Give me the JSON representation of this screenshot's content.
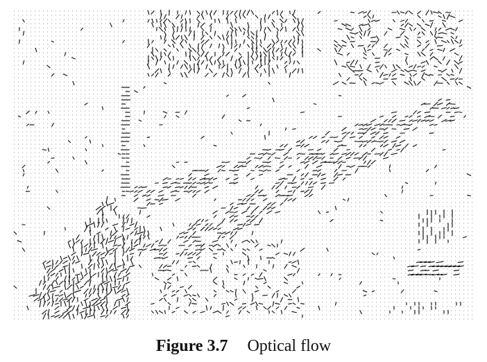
{
  "figure": {
    "label": "Figure 3.7",
    "title": "Optical flow"
  },
  "plot": {
    "kind": "optical-flow needle field",
    "grid_color": "#9a9a9a",
    "vector_color": "#1a1a1a",
    "background": "#ffffff"
  }
}
